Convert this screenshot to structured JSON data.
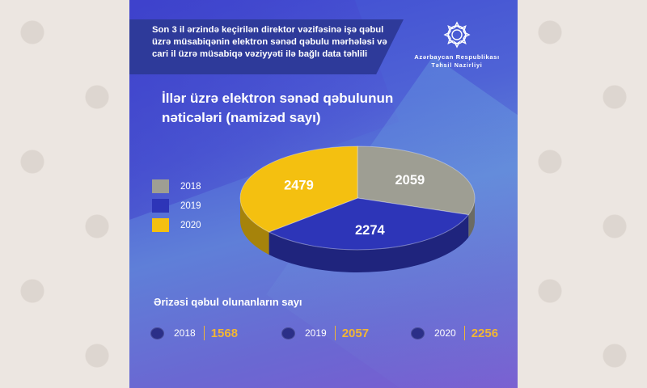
{
  "header": {
    "line1": "Son 3 il ərzində keçirilən direktor vəzifəsinə işə qəbul",
    "line2": "üzrə müsabiqənin elektron sənəd qəbulu mərhələsi və",
    "line3": "cari il üzrə müsabiqə vəziyyəti ilə bağlı data təhlili"
  },
  "logo": {
    "line1": "Azərbaycan Respublikası",
    "line2": "Təhsil Nazirliyi"
  },
  "colors": {
    "y2018": "#9e9e93",
    "y2019": "#2d35b8",
    "y2020": "#f4c010",
    "accent": "#f2b634"
  },
  "chart_data": {
    "type": "pie",
    "title": "İllər üzrə elektron sənəd qəbulunun nəticələri (namizəd sayı)",
    "title_line1": "İllər üzrə elektron sənəd qəbulunun",
    "title_line2": "nəticələri (namizəd sayı)",
    "categories": [
      "2018",
      "2019",
      "2020"
    ],
    "values": [
      2059,
      2274,
      2479
    ],
    "labels": [
      "2059",
      "2274",
      "2479"
    ],
    "legend_position": "left"
  },
  "applications": {
    "title": "Ərizəsi qəbul olunanların sayı",
    "items": [
      {
        "year": "2018",
        "value": "1568"
      },
      {
        "year": "2019",
        "value": "2057"
      },
      {
        "year": "2020",
        "value": "2256"
      }
    ]
  }
}
